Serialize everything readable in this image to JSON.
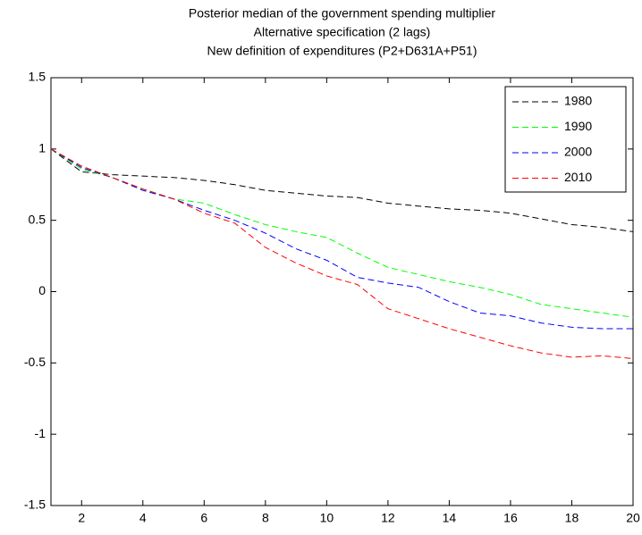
{
  "chart_data": {
    "type": "line",
    "title": [
      "Posterior median of the government spending multiplier",
      "Alternative specification (2 lags)",
      "New definition of expenditures (P2+D631A+P51)"
    ],
    "x": [
      1,
      2,
      3,
      4,
      5,
      6,
      7,
      8,
      9,
      10,
      11,
      12,
      13,
      14,
      15,
      16,
      17,
      18,
      19,
      20
    ],
    "series": [
      {
        "name": "1980",
        "color": "#000000",
        "values": [
          1,
          0.84,
          0.82,
          0.81,
          0.8,
          0.78,
          0.75,
          0.71,
          0.69,
          0.67,
          0.66,
          0.62,
          0.6,
          0.58,
          0.57,
          0.55,
          0.51,
          0.47,
          0.45,
          0.42
        ]
      },
      {
        "name": "1990",
        "color": "#00ff00",
        "values": [
          1,
          0.86,
          0.8,
          0.72,
          0.65,
          0.62,
          0.54,
          0.47,
          0.42,
          0.38,
          0.27,
          0.17,
          0.12,
          0.07,
          0.03,
          -0.02,
          -0.09,
          -0.12,
          -0.15,
          -0.18
        ]
      },
      {
        "name": "2000",
        "color": "#0000ff",
        "values": [
          1,
          0.87,
          0.8,
          0.71,
          0.65,
          0.57,
          0.5,
          0.41,
          0.3,
          0.22,
          0.1,
          0.06,
          0.03,
          -0.07,
          -0.15,
          -0.17,
          -0.22,
          -0.25,
          -0.26,
          -0.26
        ]
      },
      {
        "name": "2010",
        "color": "#ff0000",
        "values": [
          1,
          0.88,
          0.8,
          0.72,
          0.65,
          0.55,
          0.48,
          0.31,
          0.2,
          0.11,
          0.05,
          -0.12,
          -0.19,
          -0.26,
          -0.32,
          -0.38,
          -0.43,
          -0.46,
          -0.45,
          -0.47
        ]
      }
    ],
    "xlim": [
      1,
      20
    ],
    "xticks": [
      2,
      4,
      6,
      8,
      10,
      12,
      14,
      16,
      18,
      20
    ],
    "ylim": [
      -1.5,
      1.5
    ],
    "yticks": [
      -1.5,
      -1,
      -0.5,
      0,
      0.5,
      1,
      1.5
    ],
    "legend": "upper right",
    "grid": false
  }
}
